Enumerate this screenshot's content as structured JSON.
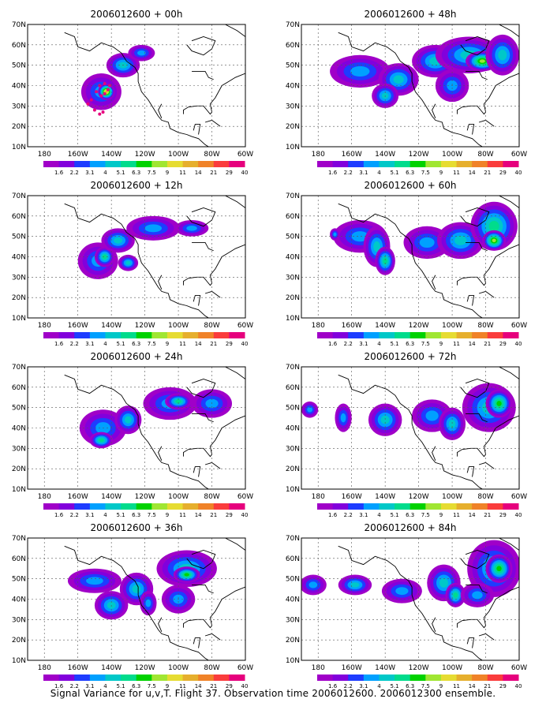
{
  "chart_data": [
    {
      "type": "heatmap",
      "title": "2006012600 + 00h",
      "region": "North Pacific / North America",
      "lat_ticks": [
        "70N",
        "60N",
        "50N",
        "40N",
        "30N",
        "20N",
        "10N"
      ],
      "lon_ticks": [
        "180",
        "160W",
        "140W",
        "120W",
        "100W",
        "80W",
        "60W"
      ],
      "lat_range": [
        10,
        70
      ],
      "lon_range": [
        -190,
        -60
      ],
      "blobs": [
        {
          "lon": -146,
          "lat": 37,
          "rx": 12,
          "ry": 9,
          "level": 3
        },
        {
          "lon": -143,
          "lat": 37,
          "rx": 5,
          "ry": 4,
          "level": 9
        },
        {
          "lon": -133,
          "lat": 50,
          "rx": 10,
          "ry": 6,
          "level": 4
        },
        {
          "lon": -122,
          "lat": 56,
          "rx": 8,
          "ry": 4,
          "level": 3
        }
      ],
      "observation_points": [
        {
          "lon": -146,
          "lat": 35
        },
        {
          "lon": -144,
          "lat": 36
        },
        {
          "lon": -142,
          "lat": 38
        },
        {
          "lon": -141,
          "lat": 40
        },
        {
          "lon": -144,
          "lat": 41
        },
        {
          "lon": -147,
          "lat": 40
        },
        {
          "lon": -149,
          "lat": 37
        },
        {
          "lon": -152,
          "lat": 33
        },
        {
          "lon": -154,
          "lat": 31
        },
        {
          "lon": -150,
          "lat": 28
        },
        {
          "lon": -147,
          "lat": 26
        },
        {
          "lon": -145,
          "lat": 27
        }
      ]
    },
    {
      "type": "heatmap",
      "title": "2006012600 + 48h",
      "lat_ticks": [
        "70N",
        "60N",
        "50N",
        "40N",
        "30N",
        "20N",
        "10N"
      ],
      "lon_ticks": [
        "180",
        "160W",
        "140W",
        "120W",
        "100W",
        "80W",
        "60W"
      ],
      "lat_range": [
        10,
        70
      ],
      "lon_range": [
        -190,
        -60
      ],
      "blobs": [
        {
          "lon": -155,
          "lat": 47,
          "rx": 18,
          "ry": 8,
          "level": 3
        },
        {
          "lon": -132,
          "lat": 43,
          "rx": 12,
          "ry": 8,
          "level": 4
        },
        {
          "lon": -140,
          "lat": 35,
          "rx": 8,
          "ry": 6,
          "level": 4
        },
        {
          "lon": -110,
          "lat": 52,
          "rx": 14,
          "ry": 8,
          "level": 4
        },
        {
          "lon": -90,
          "lat": 55,
          "rx": 20,
          "ry": 9,
          "level": 4
        },
        {
          "lon": -82,
          "lat": 52,
          "rx": 10,
          "ry": 5,
          "level": 7
        },
        {
          "lon": -70,
          "lat": 55,
          "rx": 10,
          "ry": 10,
          "level": 4
        },
        {
          "lon": -100,
          "lat": 40,
          "rx": 10,
          "ry": 8,
          "level": 3
        }
      ]
    },
    {
      "type": "heatmap",
      "title": "2006012600 + 12h",
      "lat_ticks": [
        "70N",
        "60N",
        "50N",
        "40N",
        "30N",
        "20N",
        "10N"
      ],
      "lon_ticks": [
        "180",
        "160W",
        "140W",
        "120W",
        "100W",
        "80W",
        "60W"
      ],
      "lat_range": [
        10,
        70
      ],
      "lon_range": [
        -190,
        -60
      ],
      "blobs": [
        {
          "lon": -148,
          "lat": 38,
          "rx": 12,
          "ry": 9,
          "level": 3
        },
        {
          "lon": -144,
          "lat": 40,
          "rx": 6,
          "ry": 5,
          "level": 5
        },
        {
          "lon": -136,
          "lat": 48,
          "rx": 10,
          "ry": 6,
          "level": 4
        },
        {
          "lon": -115,
          "lat": 54,
          "rx": 16,
          "ry": 6,
          "level": 3
        },
        {
          "lon": -92,
          "lat": 54,
          "rx": 10,
          "ry": 4,
          "level": 3
        },
        {
          "lon": -130,
          "lat": 37,
          "rx": 6,
          "ry": 4,
          "level": 4
        }
      ]
    },
    {
      "type": "heatmap",
      "title": "2006012600 + 60h",
      "lat_ticks": [
        "70N",
        "60N",
        "50N",
        "40N",
        "30N",
        "20N",
        "10N"
      ],
      "lon_ticks": [
        "180",
        "160W",
        "140W",
        "120W",
        "100W",
        "80W",
        "60W"
      ],
      "lat_range": [
        10,
        70
      ],
      "lon_range": [
        -190,
        -60
      ],
      "blobs": [
        {
          "lon": -155,
          "lat": 50,
          "rx": 16,
          "ry": 8,
          "level": 3
        },
        {
          "lon": -145,
          "lat": 45,
          "rx": 8,
          "ry": 10,
          "level": 4
        },
        {
          "lon": -140,
          "lat": 38,
          "rx": 6,
          "ry": 7,
          "level": 5
        },
        {
          "lon": -115,
          "lat": 47,
          "rx": 14,
          "ry": 8,
          "level": 3
        },
        {
          "lon": -95,
          "lat": 48,
          "rx": 14,
          "ry": 9,
          "level": 4
        },
        {
          "lon": -75,
          "lat": 55,
          "rx": 14,
          "ry": 12,
          "level": 5
        },
        {
          "lon": -75,
          "lat": 48,
          "rx": 7,
          "ry": 5,
          "level": 7
        },
        {
          "lon": -170,
          "lat": 51,
          "rx": 3,
          "ry": 3,
          "level": 3
        }
      ]
    },
    {
      "type": "heatmap",
      "title": "2006012600 + 24h",
      "lat_ticks": [
        "70N",
        "60N",
        "50N",
        "40N",
        "30N",
        "20N",
        "10N"
      ],
      "lon_ticks": [
        "180",
        "160W",
        "140W",
        "120W",
        "100W",
        "80W",
        "60W"
      ],
      "lat_range": [
        10,
        70
      ],
      "lon_range": [
        -190,
        -60
      ],
      "blobs": [
        {
          "lon": -145,
          "lat": 40,
          "rx": 14,
          "ry": 9,
          "level": 3
        },
        {
          "lon": -146,
          "lat": 34,
          "rx": 7,
          "ry": 4,
          "level": 5
        },
        {
          "lon": -130,
          "lat": 44,
          "rx": 8,
          "ry": 7,
          "level": 4
        },
        {
          "lon": -105,
          "lat": 52,
          "rx": 16,
          "ry": 8,
          "level": 3
        },
        {
          "lon": -100,
          "lat": 53,
          "rx": 8,
          "ry": 4,
          "level": 5
        },
        {
          "lon": -80,
          "lat": 52,
          "rx": 12,
          "ry": 7,
          "level": 3
        }
      ]
    },
    {
      "type": "heatmap",
      "title": "2006012600 + 72h",
      "lat_ticks": [
        "70N",
        "60N",
        "50N",
        "40N",
        "30N",
        "20N",
        "10N"
      ],
      "lon_ticks": [
        "180",
        "160W",
        "140W",
        "120W",
        "100W",
        "80W",
        "60W"
      ],
      "lat_range": [
        10,
        70
      ],
      "lon_range": [
        -190,
        -60
      ],
      "blobs": [
        {
          "lon": -185,
          "lat": 49,
          "rx": 5,
          "ry": 4,
          "level": 3
        },
        {
          "lon": -165,
          "lat": 45,
          "rx": 5,
          "ry": 7,
          "level": 3
        },
        {
          "lon": -140,
          "lat": 44,
          "rx": 10,
          "ry": 8,
          "level": 4
        },
        {
          "lon": -112,
          "lat": 46,
          "rx": 12,
          "ry": 8,
          "level": 3
        },
        {
          "lon": -100,
          "lat": 42,
          "rx": 8,
          "ry": 8,
          "level": 4
        },
        {
          "lon": -78,
          "lat": 50,
          "rx": 16,
          "ry": 12,
          "level": 4
        },
        {
          "lon": -72,
          "lat": 52,
          "rx": 8,
          "ry": 7,
          "level": 6
        }
      ]
    },
    {
      "type": "heatmap",
      "title": "2006012600 + 36h",
      "lat_ticks": [
        "70N",
        "60N",
        "50N",
        "40N",
        "30N",
        "20N",
        "10N"
      ],
      "lon_ticks": [
        "180",
        "160W",
        "140W",
        "120W",
        "100W",
        "80W",
        "60W"
      ],
      "lat_range": [
        10,
        70
      ],
      "lon_range": [
        -190,
        -60
      ],
      "blobs": [
        {
          "lon": -150,
          "lat": 49,
          "rx": 16,
          "ry": 6,
          "level": 3
        },
        {
          "lon": -140,
          "lat": 37,
          "rx": 10,
          "ry": 7,
          "level": 4
        },
        {
          "lon": -125,
          "lat": 45,
          "rx": 10,
          "ry": 8,
          "level": 4
        },
        {
          "lon": -95,
          "lat": 55,
          "rx": 18,
          "ry": 9,
          "level": 4
        },
        {
          "lon": -95,
          "lat": 52,
          "rx": 8,
          "ry": 4,
          "level": 6
        },
        {
          "lon": -100,
          "lat": 40,
          "rx": 10,
          "ry": 7,
          "level": 3
        },
        {
          "lon": -118,
          "lat": 38,
          "rx": 5,
          "ry": 6,
          "level": 3
        }
      ]
    },
    {
      "type": "heatmap",
      "title": "2006012600 + 84h",
      "lat_ticks": [
        "70N",
        "60N",
        "50N",
        "40N",
        "30N",
        "20N",
        "10N"
      ],
      "lon_ticks": [
        "180",
        "160W",
        "140W",
        "120W",
        "100W",
        "80W",
        "60W"
      ],
      "lat_range": [
        10,
        70
      ],
      "lon_range": [
        -190,
        -60
      ],
      "blobs": [
        {
          "lon": -183,
          "lat": 47,
          "rx": 8,
          "ry": 5,
          "level": 3
        },
        {
          "lon": -158,
          "lat": 47,
          "rx": 10,
          "ry": 5,
          "level": 4
        },
        {
          "lon": -130,
          "lat": 44,
          "rx": 12,
          "ry": 6,
          "level": 3
        },
        {
          "lon": -105,
          "lat": 48,
          "rx": 10,
          "ry": 9,
          "level": 4
        },
        {
          "lon": -98,
          "lat": 42,
          "rx": 6,
          "ry": 6,
          "level": 5
        },
        {
          "lon": -75,
          "lat": 55,
          "rx": 16,
          "ry": 14,
          "level": 4
        },
        {
          "lon": -72,
          "lat": 55,
          "rx": 8,
          "ry": 7,
          "level": 6
        },
        {
          "lon": -85,
          "lat": 42,
          "rx": 10,
          "ry": 6,
          "level": 3
        }
      ]
    }
  ],
  "colorbar": {
    "labels": [
      "1.6",
      "2.2",
      "3.1",
      "4",
      "5.1",
      "6.3",
      "7.5",
      "9",
      "11",
      "14",
      "21",
      "29",
      "40"
    ],
    "colors": [
      "#a000c8",
      "#8200dc",
      "#1e3cff",
      "#00a0ff",
      "#00c8c8",
      "#00dc8c",
      "#00d200",
      "#a0e632",
      "#e6dc32",
      "#e6af2d",
      "#f08228",
      "#fa3c3c",
      "#e6007d"
    ]
  },
  "footer": "Signal Variance for u,v,T. Flight 37. Observation time 2006012600. 2006012300 ensemble."
}
